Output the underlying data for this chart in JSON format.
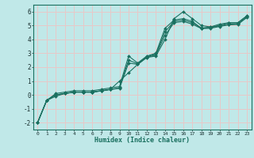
{
  "background_color": "#c0e8e8",
  "grid_color": "#e8c8c8",
  "line_color": "#1a7060",
  "marker": "D",
  "marker_size": 2.0,
  "xlabel": "Humidex (Indice chaleur)",
  "xlim": [
    -0.5,
    23.5
  ],
  "ylim": [
    -2.5,
    6.5
  ],
  "xticks": [
    0,
    1,
    2,
    3,
    4,
    5,
    6,
    7,
    8,
    9,
    10,
    11,
    12,
    13,
    14,
    15,
    16,
    17,
    18,
    19,
    20,
    21,
    22,
    23
  ],
  "yticks": [
    -2,
    -1,
    0,
    1,
    2,
    3,
    4,
    5,
    6
  ],
  "series": [
    {
      "x": [
        0,
        1,
        2,
        3,
        4,
        5,
        6,
        7,
        8,
        9,
        10,
        11,
        12,
        13,
        14,
        15,
        16,
        17,
        18,
        19,
        20,
        21,
        22,
        23
      ],
      "y": [
        -2.0,
        -0.4,
        -0.1,
        0.1,
        0.2,
        0.2,
        0.2,
        0.3,
        0.4,
        1.0,
        1.6,
        2.2,
        2.7,
        2.8,
        4.0,
        5.5,
        6.0,
        5.5,
        5.0,
        4.9,
        5.1,
        5.2,
        5.2,
        5.7
      ]
    },
    {
      "x": [
        0,
        1,
        2,
        3,
        4,
        5,
        6,
        7,
        8,
        9,
        10,
        11,
        12,
        13,
        14,
        15,
        16,
        17,
        18,
        19,
        20,
        21,
        22,
        23
      ],
      "y": [
        -2.0,
        -0.4,
        0.1,
        0.2,
        0.3,
        0.3,
        0.3,
        0.4,
        0.5,
        0.6,
        2.8,
        2.3,
        2.8,
        3.0,
        4.8,
        5.4,
        5.5,
        5.3,
        4.8,
        4.9,
        5.0,
        5.2,
        5.2,
        5.7
      ]
    },
    {
      "x": [
        0,
        1,
        2,
        3,
        4,
        5,
        6,
        7,
        8,
        9,
        10,
        11,
        12,
        13,
        14,
        15,
        16,
        17,
        18,
        19,
        20,
        21,
        22,
        23
      ],
      "y": [
        -2.0,
        -0.4,
        0.0,
        0.1,
        0.2,
        0.2,
        0.2,
        0.3,
        0.4,
        0.5,
        2.5,
        2.25,
        2.75,
        2.95,
        4.55,
        5.3,
        5.4,
        5.2,
        4.82,
        4.85,
        4.97,
        5.1,
        5.12,
        5.62
      ]
    },
    {
      "x": [
        0,
        1,
        2,
        3,
        4,
        5,
        6,
        7,
        8,
        9,
        10,
        11,
        12,
        13,
        14,
        15,
        16,
        17,
        18,
        19,
        20,
        21,
        22,
        23
      ],
      "y": [
        -2.0,
        -0.4,
        0.0,
        0.1,
        0.2,
        0.2,
        0.2,
        0.28,
        0.38,
        0.48,
        2.3,
        2.2,
        2.7,
        2.88,
        4.3,
        5.2,
        5.3,
        5.1,
        4.78,
        4.8,
        4.93,
        5.05,
        5.08,
        5.58
      ]
    }
  ]
}
